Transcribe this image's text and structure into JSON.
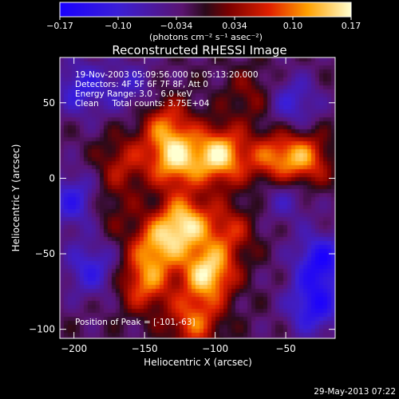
{
  "chart_data": {
    "type": "heatmap",
    "title": "Reconstructed RHESSI Image",
    "xlabel": "Heliocentric X (arcsec)",
    "ylabel": "Heliocentric Y (arcsec)",
    "xlim": [
      -210,
      -15
    ],
    "ylim": [
      -106,
      80
    ],
    "x_ticks": [
      -200,
      -150,
      -100,
      -50
    ],
    "y_ticks": [
      -100,
      -50,
      0,
      50
    ],
    "colorbar": {
      "label": "(photons cm⁻² s⁻¹ asec⁻²)",
      "range": [
        -0.17,
        0.17
      ],
      "ticks": [
        "-0.17",
        "-0.10",
        "-0.034",
        "0.034",
        "0.10",
        "0.17"
      ]
    },
    "annotations": [
      "19-Nov-2003 05:09:56.000 to 05:13:20.000",
      "Detectors: 4F 5F 6F 7F 8F, Att 0",
      "Energy Range: 3.0 - 6.0 keV",
      "Clean     Total counts: 3.75E+04"
    ],
    "peak_label": "Position of Peak = [-101,-63]",
    "sources": [
      {
        "x": -97,
        "y": 15,
        "value": 0.17
      },
      {
        "x": -105,
        "y": -63,
        "value": 0.17
      },
      {
        "x": -122,
        "y": -30,
        "value": 0.16
      },
      {
        "x": -128,
        "y": 12,
        "value": 0.15
      },
      {
        "x": -142,
        "y": -45,
        "value": 0.12
      },
      {
        "x": -135,
        "y": 35,
        "value": 0.1
      },
      {
        "x": -150,
        "y": -70,
        "value": 0.11
      },
      {
        "x": -60,
        "y": 12,
        "value": 0.1
      },
      {
        "x": -38,
        "y": 12,
        "value": 0.13
      },
      {
        "x": -115,
        "y": -95,
        "value": 0.11
      },
      {
        "x": -90,
        "y": -35,
        "value": 0.08
      },
      {
        "x": -165,
        "y": 10,
        "value": 0.07
      },
      {
        "x": -75,
        "y": 55,
        "value": 0.05
      },
      {
        "x": -175,
        "y": -20,
        "value": 0.04
      }
    ],
    "negatives": [
      {
        "x": -195,
        "y": 60,
        "value": -0.09
      },
      {
        "x": -200,
        "y": -15,
        "value": -0.1
      },
      {
        "x": -188,
        "y": -60,
        "value": -0.09
      },
      {
        "x": -25,
        "y": -55,
        "value": -0.13
      },
      {
        "x": -30,
        "y": -85,
        "value": -0.12
      },
      {
        "x": -50,
        "y": -10,
        "value": -0.07
      },
      {
        "x": -45,
        "y": 50,
        "value": -0.08
      },
      {
        "x": -160,
        "y": 60,
        "value": -0.06
      }
    ]
  },
  "timestamp": "29-May-2013 07:22"
}
